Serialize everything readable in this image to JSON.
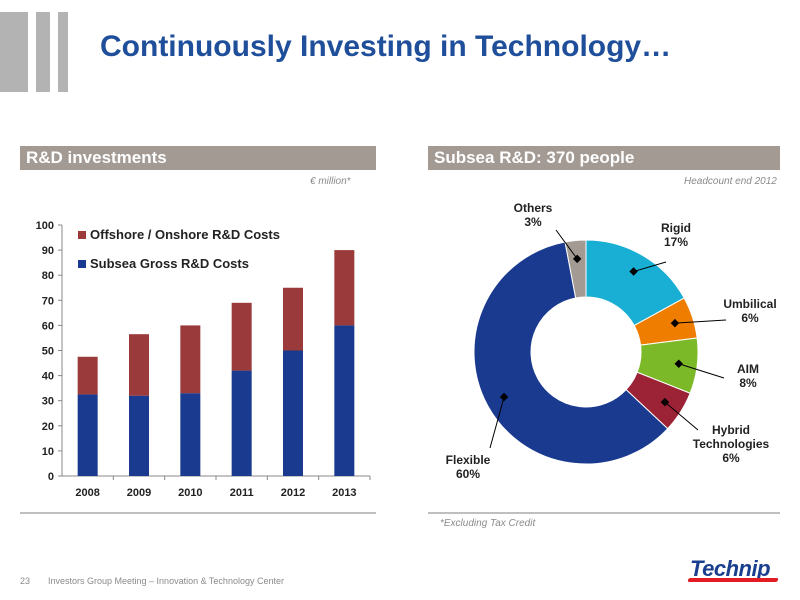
{
  "header": {
    "title": "Continuously Investing in Technology…"
  },
  "left_panel": {
    "header": "R&D investments",
    "unit_note": "€ million*"
  },
  "right_panel": {
    "header": "Subsea R&D:   370 people",
    "note": "Headcount  end 2012",
    "footnote": "*Excluding Tax Credit"
  },
  "footer": {
    "page_number": "23",
    "text": "Investors Group Meeting – Innovation & Technology Center",
    "logo": "Technip"
  },
  "colors": {
    "title": "#1f4e9a",
    "header_bg": "#a39a94",
    "subsea": "#1a3a8f",
    "offshore": "#9b3a3a"
  },
  "chart_data": [
    {
      "type": "bar",
      "stacked": true,
      "categories": [
        "2008",
        "2009",
        "2010",
        "2011",
        "2012",
        "2013"
      ],
      "series": [
        {
          "name": "Subsea Gross R&D Costs",
          "values": [
            32.5,
            32,
            33,
            42,
            50,
            60
          ],
          "color": "#1a3a8f"
        },
        {
          "name": "Offshore / Onshore  R&D Costs",
          "values": [
            15,
            24.5,
            27,
            27,
            25,
            30
          ],
          "color": "#9b3a3a"
        }
      ],
      "ylim": [
        0,
        100
      ],
      "yticks": [
        0,
        10,
        20,
        30,
        40,
        50,
        60,
        70,
        80,
        90,
        100
      ],
      "legend": "top-left",
      "grid": false
    },
    {
      "type": "pie",
      "donut": true,
      "slices": [
        {
          "label": "Rigid",
          "value": 17,
          "pct_label": "17%",
          "color": "#19aed3"
        },
        {
          "label": "Umbilical",
          "value": 6,
          "pct_label": "6%",
          "color": "#ef7d00"
        },
        {
          "label": "AIM",
          "value": 8,
          "pct_label": "8%",
          "color": "#7cb928"
        },
        {
          "label": "Hybrid Technologies",
          "value": 6,
          "pct_label": "6%",
          "color": "#9b2335"
        },
        {
          "label": "Flexible",
          "value": 60,
          "pct_label": "60%",
          "color": "#1a3a8f"
        },
        {
          "label": "Others",
          "value": 3,
          "pct_label": "3%",
          "color": "#a39a94"
        }
      ]
    }
  ]
}
